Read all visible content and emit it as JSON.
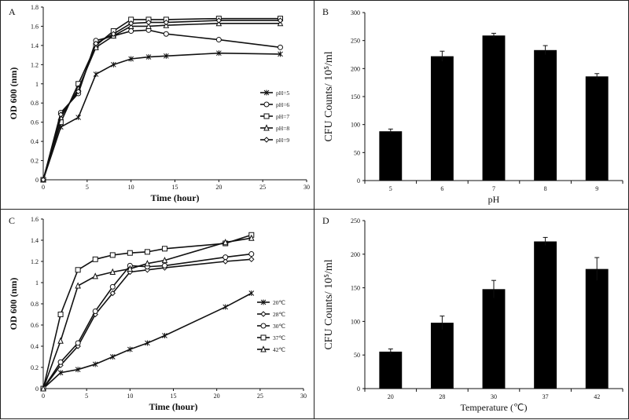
{
  "chart_data": [
    {
      "panel": "A",
      "type": "line",
      "xlabel": "Time (hour)",
      "ylabel": "OD 600 (nm)",
      "xlim": [
        0,
        30
      ],
      "ylim": [
        0,
        1.8
      ],
      "xticks": [
        0,
        5,
        10,
        15,
        20,
        25,
        30
      ],
      "yticks": [
        0,
        0.2,
        0.4,
        0.6,
        0.8,
        1,
        1.2,
        1.4,
        1.6,
        1.8
      ],
      "x": [
        0,
        2,
        4,
        6,
        8,
        10,
        12,
        14,
        20,
        27
      ],
      "legend_position": "right",
      "series": [
        {
          "name": "pH=5",
          "marker": "star",
          "values": [
            0,
            0.55,
            0.65,
            1.1,
            1.2,
            1.26,
            1.28,
            1.29,
            1.32,
            1.31
          ]
        },
        {
          "name": "pH=6",
          "marker": "circle",
          "values": [
            0,
            0.7,
            0.9,
            1.45,
            1.5,
            1.55,
            1.56,
            1.52,
            1.46,
            1.38
          ]
        },
        {
          "name": "pH=7",
          "marker": "square",
          "values": [
            0,
            0.6,
            1.0,
            1.4,
            1.55,
            1.67,
            1.67,
            1.67,
            1.68,
            1.68
          ]
        },
        {
          "name": "pH=8",
          "marker": "triangle",
          "values": [
            0,
            0.65,
            0.95,
            1.38,
            1.5,
            1.6,
            1.6,
            1.61,
            1.63,
            1.63
          ]
        },
        {
          "name": "pH=9",
          "marker": "diamond",
          "values": [
            0,
            0.68,
            0.92,
            1.42,
            1.52,
            1.63,
            1.64,
            1.64,
            1.66,
            1.66
          ]
        }
      ]
    },
    {
      "panel": "B",
      "type": "bar",
      "xlabel": "pH",
      "ylabel": "CFU Counts/ 10⁵/ml",
      "ylim": [
        0,
        300
      ],
      "yticks": [
        0,
        50,
        100,
        150,
        200,
        250,
        300
      ],
      "categories": [
        "5",
        "6",
        "7",
        "8",
        "9"
      ],
      "values": [
        88,
        222,
        259,
        233,
        186
      ],
      "errors": [
        4,
        9,
        4,
        8,
        5
      ]
    },
    {
      "panel": "C",
      "type": "line",
      "xlabel": "Time (hour)",
      "ylabel": "OD 600 (nm)",
      "xlim": [
        0,
        30
      ],
      "ylim": [
        0,
        1.6
      ],
      "xticks": [
        0,
        5,
        10,
        15,
        20,
        25,
        30
      ],
      "yticks": [
        0,
        0.2,
        0.4,
        0.6,
        0.8,
        1,
        1.2,
        1.4,
        1.6
      ],
      "x": [
        0,
        2,
        4,
        6,
        8,
        10,
        12,
        14,
        21,
        24
      ],
      "legend_position": "right",
      "series": [
        {
          "name": "20℃",
          "marker": "star",
          "values": [
            0,
            0.15,
            0.18,
            0.23,
            0.3,
            0.37,
            0.43,
            0.5,
            0.77,
            0.9
          ]
        },
        {
          "name": "28℃",
          "marker": "diamond",
          "values": [
            0,
            0.22,
            0.4,
            0.7,
            0.9,
            1.1,
            1.12,
            1.14,
            1.2,
            1.22
          ]
        },
        {
          "name": "30℃",
          "marker": "circle",
          "values": [
            0,
            0.25,
            0.43,
            0.73,
            0.96,
            1.16,
            1.15,
            1.16,
            1.24,
            1.27
          ]
        },
        {
          "name": "37℃",
          "marker": "square",
          "values": [
            0,
            0.7,
            1.12,
            1.22,
            1.26,
            1.28,
            1.29,
            1.32,
            1.37,
            1.45
          ]
        },
        {
          "name": "42℃",
          "marker": "triangle",
          "values": [
            0,
            0.45,
            0.97,
            1.06,
            1.1,
            1.13,
            1.18,
            1.21,
            1.38,
            1.42
          ]
        }
      ]
    },
    {
      "panel": "D",
      "type": "bar",
      "xlabel": "Temperature (℃)",
      "ylabel": "CFU Counts/ 10⁵/ml",
      "ylim": [
        0,
        250
      ],
      "yticks": [
        0,
        50,
        100,
        150,
        200,
        250
      ],
      "categories": [
        "20",
        "28",
        "30",
        "37",
        "42"
      ],
      "values": [
        55,
        98,
        148,
        219,
        178
      ],
      "errors": [
        4,
        10,
        13,
        6,
        17
      ]
    }
  ]
}
